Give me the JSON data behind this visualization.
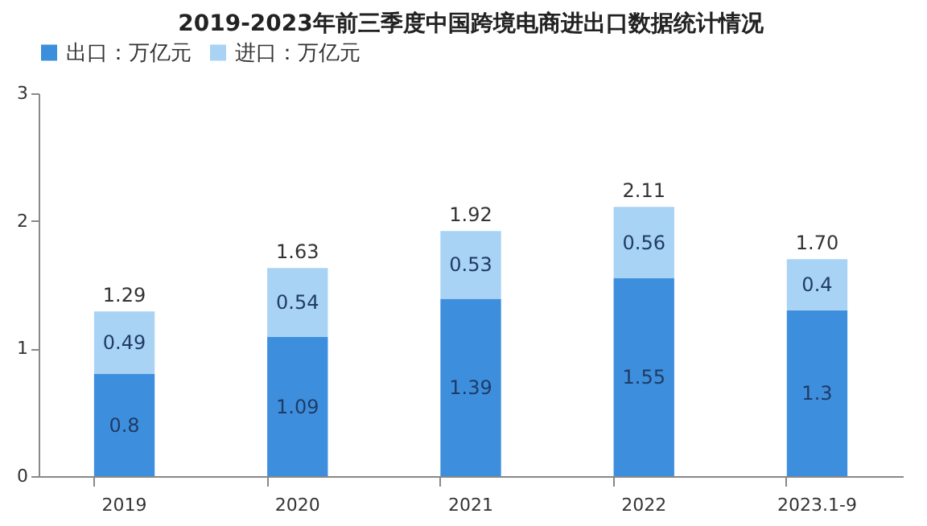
{
  "chart_data": {
    "type": "bar",
    "title": "2019-2023年前三季度中国跨境电商进出口数据统计情况",
    "categories": [
      "2019",
      "2020",
      "2021",
      "2022",
      "2023.1-9"
    ],
    "series": [
      {
        "name": "出口：万亿元",
        "color": "#3d8fdd",
        "values": [
          0.8,
          1.09,
          1.39,
          1.55,
          1.3
        ]
      },
      {
        "name": "进口：万亿元",
        "color": "#a8d3f5",
        "values": [
          0.49,
          0.54,
          0.53,
          0.56,
          0.4
        ]
      }
    ],
    "stacked": true,
    "data_labels": true,
    "totals": [
      "1.29",
      "1.63",
      "1.92",
      "2.11",
      "1.70"
    ],
    "ylim": [
      0,
      3
    ],
    "yticks": [
      0,
      1,
      2,
      3
    ],
    "grid": false,
    "legend": "top"
  }
}
